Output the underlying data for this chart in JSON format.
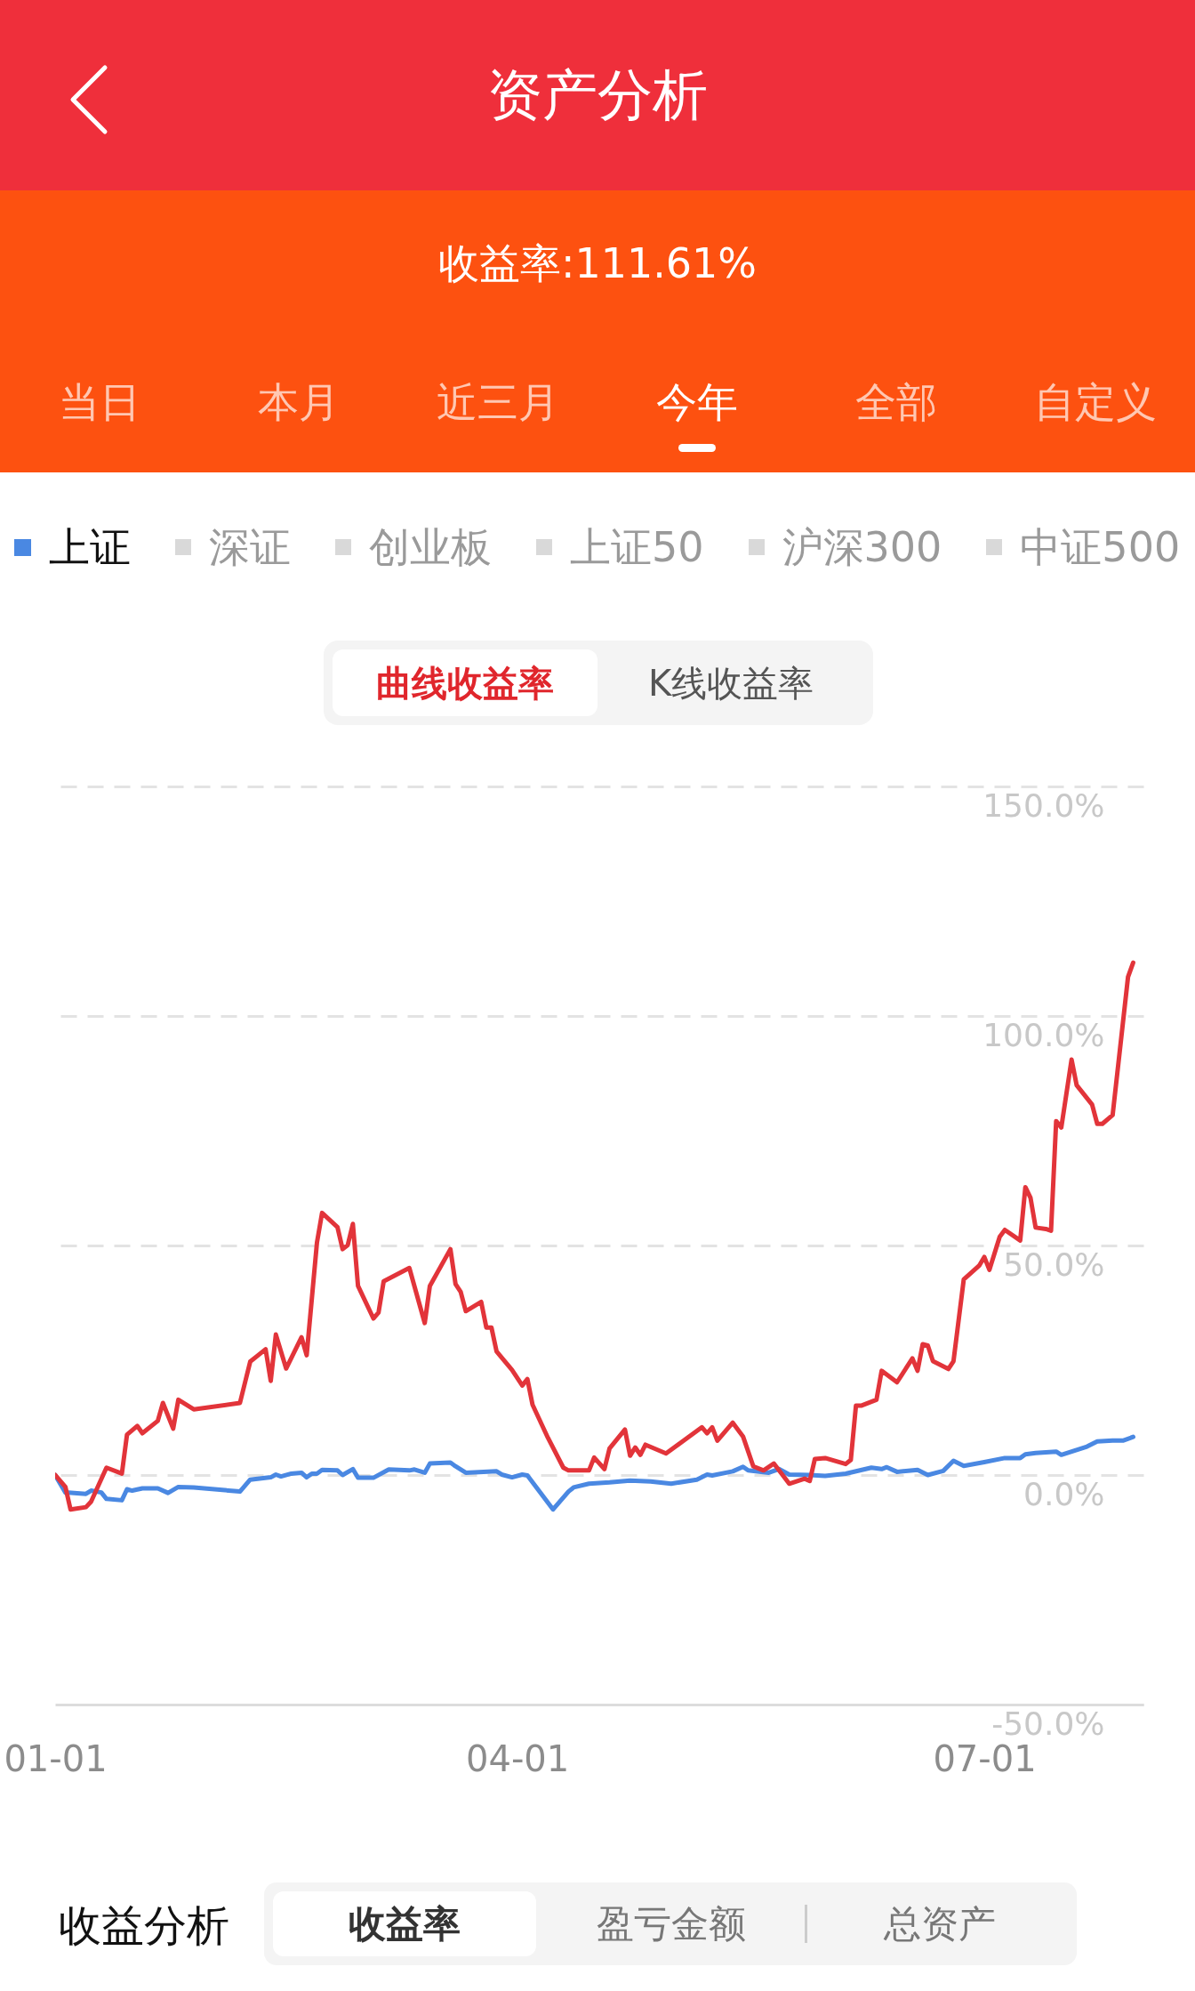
{
  "chart_data": {
    "type": "line",
    "title": "资产分析",
    "subtitle": "收益率:111.61%",
    "annotations": [
      "当日",
      "本月",
      "近三月",
      "今年",
      "全部",
      "自定义",
      "深证",
      "创业板",
      "上证50",
      "沪深300",
      "中证500",
      "曲线收益率",
      "K线收益率",
      "收益分析",
      "收益率",
      "盈亏金额",
      "总资产"
    ],
    "xlim": [
      "--01-01",
      "--08-01"
    ],
    "xticks": [
      {
        "value": "--01-01",
        "label": "01-01"
      },
      {
        "value": "--04-01",
        "label": "04-01"
      },
      {
        "value": "--07-01",
        "label": "07-01"
      }
    ],
    "ylim": [
      -50,
      150
    ],
    "yticks": [
      {
        "value": -50,
        "label": "-50.0%"
      },
      {
        "value": 0,
        "label": "0.0%"
      },
      {
        "value": 50,
        "label": "50.0%"
      },
      {
        "value": 100,
        "label": "100.0%"
      },
      {
        "value": 150,
        "label": "150.0%"
      }
    ],
    "grid": "y",
    "legend": "top",
    "series": [
      {
        "name": "上证",
        "color": "#4a88e2",
        "x": [
          "--01-01",
          "--01-03",
          "--01-07",
          "--01-08",
          "--01-10",
          "--01-11",
          "--01-14",
          "--01-15",
          "--01-16",
          "--01-18",
          "--01-21",
          "--01-23",
          "--01-25",
          "--01-28",
          "--02-06",
          "--02-08",
          "--02-12",
          "--02-13",
          "--02-14",
          "--02-16",
          "--02-18",
          "--02-19",
          "--02-20",
          "--02-21",
          "--02-22",
          "--02-25",
          "--02-26",
          "--02-28",
          "--03-01",
          "--03-04",
          "--03-07",
          "--03-11",
          "--03-12",
          "--03-14",
          "--03-15",
          "--03-19",
          "--03-20",
          "--03-22",
          "--03-28",
          "--03-29",
          "--03-31",
          "--04-02",
          "--04-03",
          "--04-08",
          "--04-11",
          "--04-12",
          "--04-15",
          "--04-19",
          "--04-23",
          "--04-27",
          "--05-01",
          "--05-06",
          "--05-08",
          "--05-09",
          "--05-13",
          "--05-15",
          "--05-16",
          "--05-20",
          "--05-22",
          "--05-24",
          "--05-28",
          "--05-31",
          "--06-04",
          "--06-09",
          "--06-11",
          "--06-12",
          "--06-14",
          "--06-18",
          "--06-20",
          "--06-23",
          "--06-25",
          "--06-27",
          "--07-01",
          "--07-05",
          "--07-08",
          "--07-09",
          "--07-11",
          "--07-15",
          "--07-16",
          "--07-21",
          "--07-23",
          "--07-26",
          "--07-28",
          "--07-30"
        ],
        "values": [
          0,
          -3.8,
          -4.1,
          -3.4,
          -3.8,
          -5.2,
          -5.5,
          -3.1,
          -3.4,
          -2.9,
          -2.9,
          -3.9,
          -2.6,
          -2.7,
          -3.6,
          -1.0,
          -0.5,
          0.1,
          -0.3,
          0.3,
          0.5,
          -0.5,
          0.3,
          0.3,
          1.1,
          1.0,
          0,
          1.3,
          -0.6,
          -0.6,
          1.2,
          1.0,
          1.2,
          0.5,
          2.5,
          2.7,
          1.9,
          0.5,
          0.8,
          0.1,
          -0.5,
          0.1,
          -0.1,
          -7.5,
          -3.6,
          -2.7,
          -1.9,
          -1.6,
          -1.2,
          -1.4,
          -1.9,
          -1.0,
          0.1,
          -0.1,
          0.8,
          1.8,
          1.0,
          0.5,
          1.3,
          0.1,
          0,
          -0.2,
          0.3,
          1.6,
          1.3,
          1.7,
          0.7,
          1.1,
          0,
          0.9,
          3.1,
          2.0,
          2.8,
          3.7,
          3.7,
          4.5,
          4.8,
          5.1,
          4.4,
          6.2,
          7.3,
          7.5,
          7.5,
          8.3
        ]
      },
      {
        "color": "#e2343a",
        "x": [
          "--01-01",
          "--01-03",
          "--01-04",
          "--01-07",
          "--01-08",
          "--01-11",
          "--01-14",
          "--01-15",
          "--01-17",
          "--01-18",
          "--01-21",
          "--01-22",
          "--01-24",
          "--01-25",
          "--01-28",
          "--02-06",
          "--02-08",
          "--02-11",
          "--02-12",
          "--02-13",
          "--02-15",
          "--02-18",
          "--02-19",
          "--02-21",
          "--02-22",
          "--02-25",
          "--02-26",
          "--02-27",
          "--02-28",
          "--03-01",
          "--03-04",
          "--03-05",
          "--03-06",
          "--03-11",
          "--03-14",
          "--03-15",
          "--03-19",
          "--03-20",
          "--03-21",
          "--03-22",
          "--03-25",
          "--03-26",
          "--03-27",
          "--03-28",
          "--03-31",
          "--04-02",
          "--04-03",
          "--04-04",
          "--04-07",
          "--04-10",
          "--04-11",
          "--04-15",
          "--04-16",
          "--04-18",
          "--04-19",
          "--04-22",
          "--04-23",
          "--04-24",
          "--04-25",
          "--04-26",
          "--04-30",
          "--05-07",
          "--05-08",
          "--05-09",
          "--05-10",
          "--05-13",
          "--05-15",
          "--05-17",
          "--05-19",
          "--05-21",
          "--05-24",
          "--05-27",
          "--05-28",
          "--05-29",
          "--05-31",
          "--06-04",
          "--06-05",
          "--06-06",
          "--06-07",
          "--06-10",
          "--06-11",
          "--06-14",
          "--06-17",
          "--06-18",
          "--06-19",
          "--06-20",
          "--06-21",
          "--06-24",
          "--06-25",
          "--06-27",
          "--06-30",
          "--07-01",
          "--07-02",
          "--07-04",
          "--07-05",
          "--07-08",
          "--07-09",
          "--07-10",
          "--07-11",
          "--07-13",
          "--07-14",
          "--07-15",
          "--07-16",
          "--07-18",
          "--07-19",
          "--07-22",
          "--07-23",
          "--07-24",
          "--07-26",
          "--07-29",
          "--07-30"
        ],
        "values": [
          0,
          -2.6,
          -7.5,
          -7.0,
          -5.8,
          1.6,
          0.3,
          8.8,
          10.7,
          9.1,
          11.8,
          15.7,
          10.1,
          16.4,
          14.3,
          15.7,
          24.7,
          27.4,
          20.5,
          30.6,
          23.2,
          30.0,
          26.1,
          50.6,
          57.1,
          54.0,
          49.2,
          50.1,
          54.7,
          41.2,
          34.1,
          35.4,
          42.2,
          45.1,
          33.1,
          41.2,
          49.2,
          41.6,
          39.9,
          35.7,
          37.7,
          32.1,
          32.1,
          26.9,
          22.9,
          19.5,
          20.9,
          15.3,
          8.1,
          1.6,
          1.0,
          1.0,
          3.8,
          1.3,
          5.8,
          9.9,
          4.2,
          6.0,
          4.4,
          6.6,
          4.7,
          10.4,
          9.1,
          10.4,
          7.5,
          11.4,
          8.4,
          1.9,
          1.0,
          2.5,
          -1.9,
          -0.8,
          -1.3,
          3.5,
          3.7,
          2.4,
          3.3,
          15.1,
          15.1,
          16.4,
          22.7,
          20.2,
          25.4,
          22.7,
          28.5,
          28.2,
          24.8,
          23.1,
          24.8,
          42.6,
          45.6,
          47.5,
          44.7,
          51.9,
          53.4,
          51.1,
          62.7,
          60.4,
          53.9,
          53.6,
          53.2,
          77.1,
          75.7,
          90.5,
          84.9,
          80.7,
          76.5,
          76.5,
          78.4,
          108.5,
          111.6
        ]
      }
    ]
  }
}
